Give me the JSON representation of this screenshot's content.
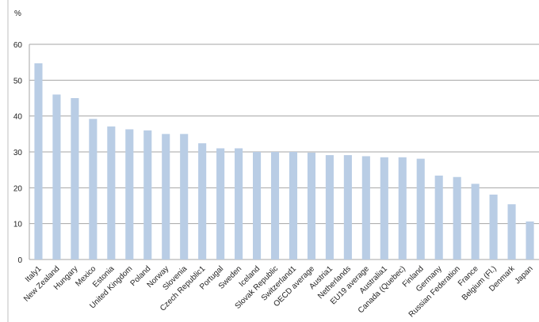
{
  "chart_data": {
    "type": "bar",
    "ylabel": "%",
    "categories": [
      "Italy1",
      "New Zealand",
      "Hungary",
      "Mexico",
      "Estonia",
      "United Kingdom",
      "Poland",
      "Norway",
      "Slovenia",
      "Czech Republic1",
      "Portugal",
      "Sweden",
      "Iceland",
      "Slovak Republic",
      "Switzerland1",
      "OECD average",
      "Austria1",
      "Netherlands",
      "EU19 average",
      "Australia1",
      "Canada (Quebec)",
      "Finland",
      "Germany",
      "Russian Federation",
      "France",
      "Belgium (Fl.)",
      "Denmark",
      "Japan"
    ],
    "values": [
      54.7,
      46.0,
      45.0,
      39.2,
      37.1,
      36.3,
      36.0,
      35.0,
      35.0,
      32.4,
      31.0,
      31.0,
      30.0,
      30.0,
      30.0,
      29.8,
      29.1,
      29.1,
      28.8,
      28.5,
      28.5,
      28.1,
      23.4,
      23.0,
      21.1,
      18.1,
      15.4,
      10.6
    ],
    "color": "#b9cde5",
    "ylim": [
      0,
      60
    ],
    "yticks": [
      0,
      10,
      20,
      30,
      40,
      50,
      60
    ],
    "grid": true
  }
}
